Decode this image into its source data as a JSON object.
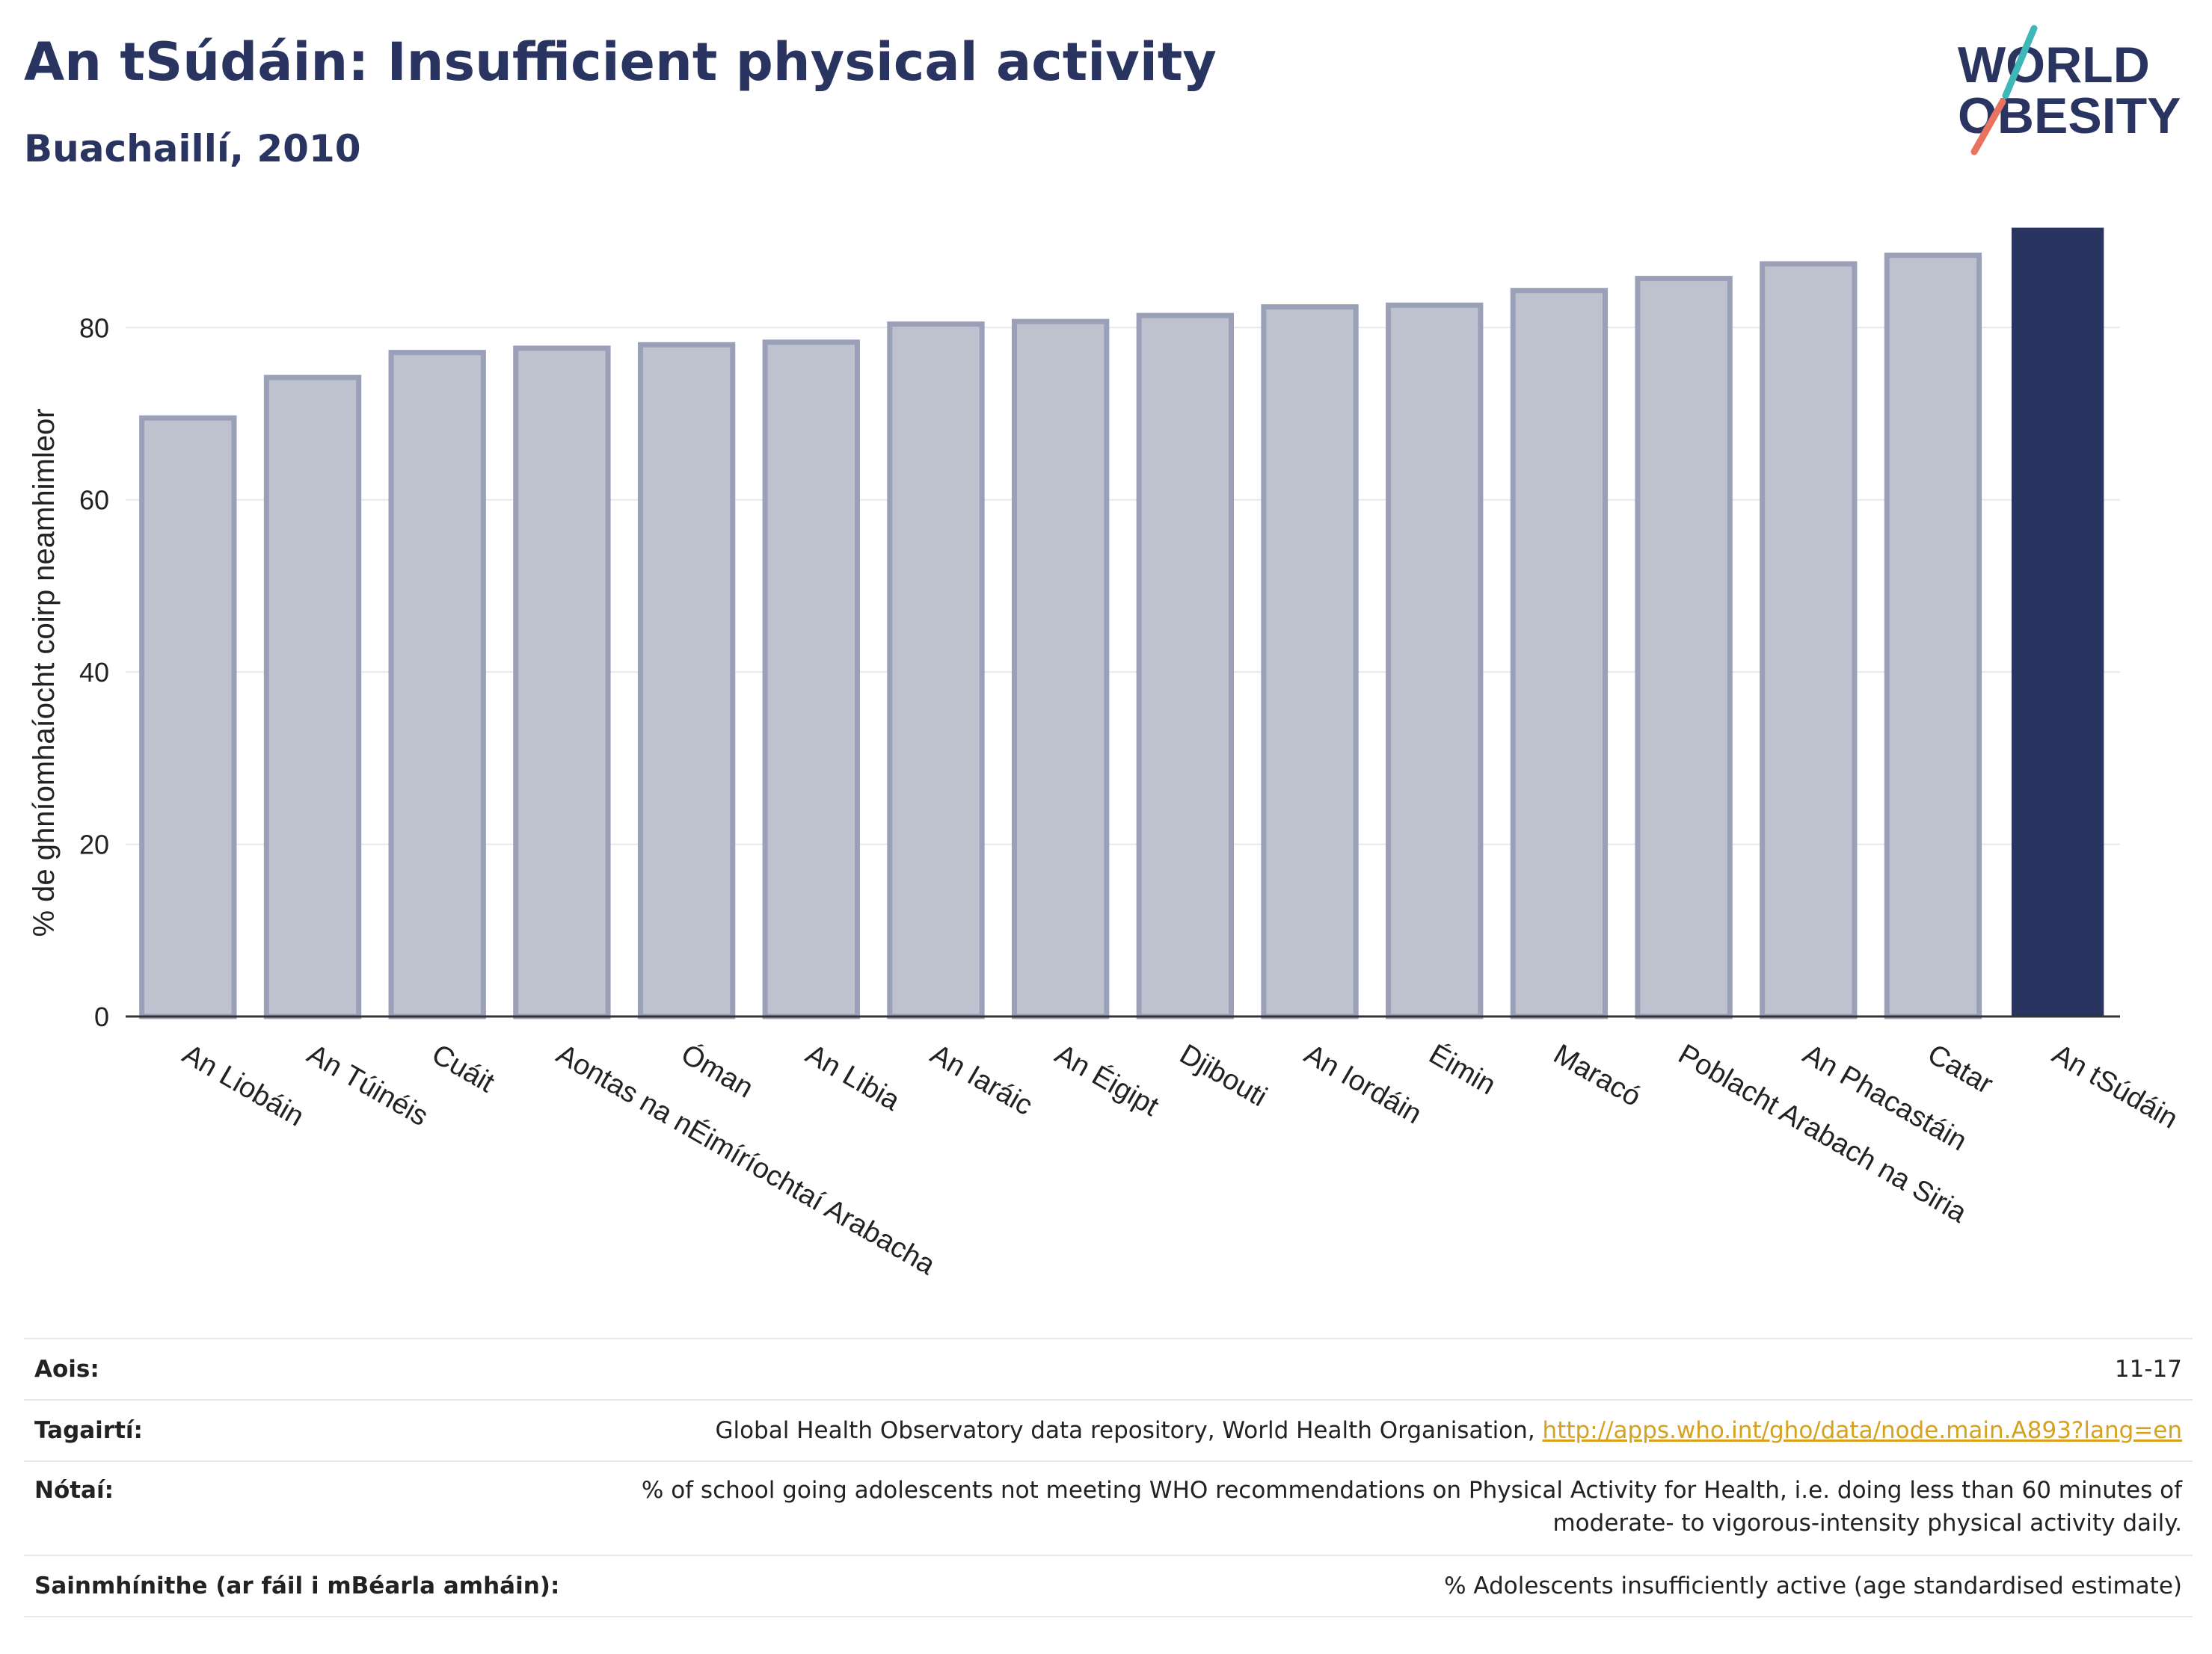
{
  "header": {
    "title": "An tSúdáin: Insufficient physical activity",
    "subtitle": "Buachaillí, 2010",
    "logo_text_line1": "WORLD",
    "logo_text_line2": "OBESITY"
  },
  "chart_data": {
    "type": "bar",
    "categories": [
      "An Liobáin",
      "An Túinéis",
      "Cuáit",
      "Aontas na nÉimíríochtaí Arabacha",
      "Óman",
      "An Libia",
      "An Iaráic",
      "An Éigipt",
      "Djibouti",
      "An Iordáin",
      "Éimin",
      "Maracó",
      "Poblacht Arabach na Siria",
      "An Phacastáin",
      "Catar",
      "An tSúdáin"
    ],
    "values": [
      69.5,
      74.2,
      77.1,
      77.6,
      78.0,
      78.3,
      80.4,
      80.7,
      81.4,
      82.4,
      82.6,
      84.3,
      85.7,
      87.4,
      88.4,
      91.6
    ],
    "highlight": "An tSúdáin",
    "ylabel": "% de ghníomhaíocht coirp neamhimleor",
    "xlabel": "",
    "ylim": [
      0,
      92
    ],
    "yticks": [
      0,
      20,
      40,
      60,
      80
    ],
    "grid": true,
    "colors": {
      "bar": "#bec2cf",
      "bar_border": "#9aa0b8",
      "highlight": "#2a3461"
    }
  },
  "meta": {
    "age_label": "Aois:",
    "age_value": "11-17",
    "refs_label": "Tagairtí:",
    "refs_text": "Global Health Observatory data repository, World Health Organisation, ",
    "refs_link": "http://apps.who.int/gho/data/node.main.A893?lang=en",
    "notes_label": "Nótaí:",
    "notes_value": "% of school going adolescents not meeting WHO recommendations on Physical Activity for Health, i.e. doing less than 60 minutes of moderate- to vigorous-intensity physical activity daily.",
    "defs_label": "Sainmhínithe (ar fáil i mBéarla amháin):",
    "defs_value": "% Adolescents insufficiently active (age standardised estimate)"
  }
}
